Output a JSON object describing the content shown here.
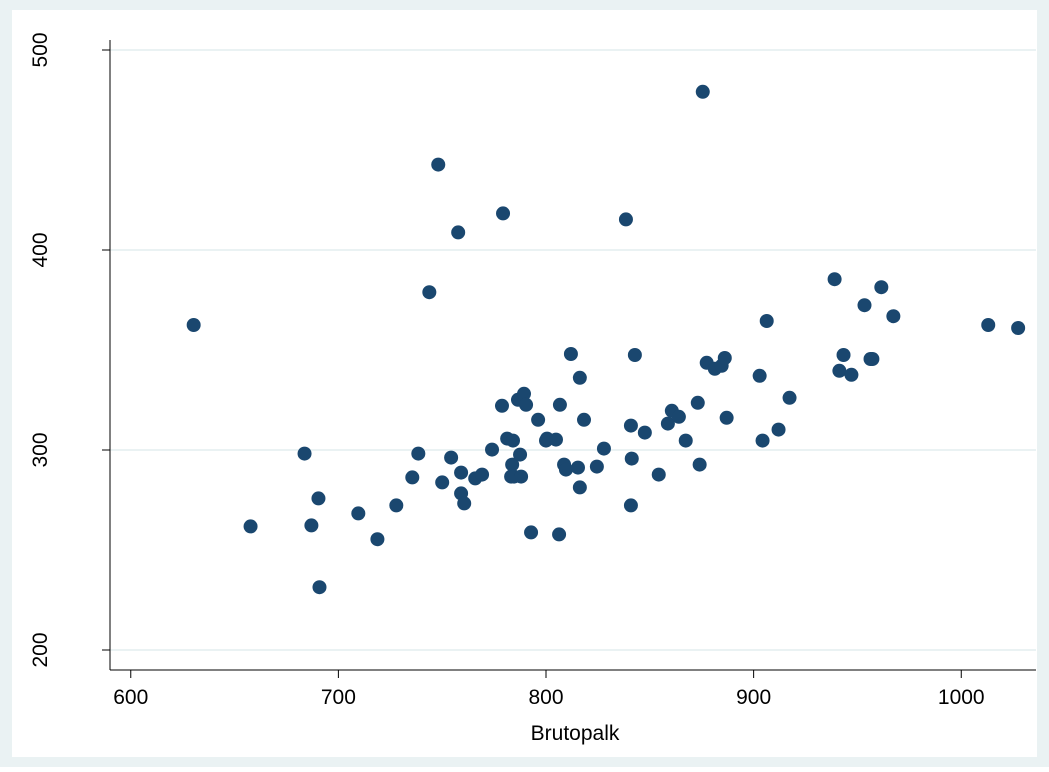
{
  "chart_data": {
    "type": "scatter",
    "x_label": "Brutopalk",
    "xlim": [
      590,
      1036
    ],
    "ylim": [
      190,
      520
    ],
    "xticks": [
      600,
      700,
      800,
      900,
      1000
    ],
    "yticks": [
      200,
      300,
      400,
      500
    ],
    "grid": true,
    "x": [
      630.3,
      657.7,
      683.7,
      687.0,
      690.4,
      690.9,
      709.6,
      718.8,
      727.9,
      735.6,
      738.5,
      743.8,
      748.1,
      750.0,
      754.3,
      757.7,
      759.1,
      759.1,
      760.6,
      765.9,
      769.2,
      774.0,
      778.8,
      779.3,
      781.3,
      783.2,
      783.7,
      784.1,
      784.6,
      786.5,
      787.5,
      788.0,
      789.4,
      790.4,
      792.8,
      796.2,
      800.0,
      800.5,
      804.8,
      806.3,
      806.7,
      808.7,
      809.6,
      812.0,
      815.4,
      816.3,
      816.3,
      818.3,
      824.5,
      827.9,
      838.5,
      840.9,
      840.9,
      841.3,
      842.8,
      847.6,
      854.3,
      858.7,
      860.6,
      864.0,
      867.3,
      873.1,
      874.0,
      875.5,
      877.4,
      881.3,
      884.6,
      886.1,
      887.0,
      902.9,
      904.3,
      906.3,
      912.0,
      917.3,
      939.0,
      941.3,
      943.3,
      947.1,
      953.4,
      956.3,
      957.2,
      961.5,
      967.3,
      1013.0,
      1027.4
    ],
    "series": [
      {
        "color": "#1a476f",
        "values": [
          362.5,
          261.8,
          298.2,
          262.3,
          275.8,
          231.4,
          268.3,
          255.4,
          272.3,
          286.3,
          298.2,
          378.9,
          442.7,
          283.8,
          296.2,
          408.8,
          288.7,
          278.3,
          273.3,
          285.8,
          287.7,
          300.2,
          322.1,
          418.3,
          305.7,
          286.7,
          292.7,
          304.7,
          286.7,
          325.1,
          297.7,
          286.7,
          328.1,
          322.6,
          258.8,
          315.1,
          304.7,
          305.7,
          305.2,
          257.8,
          322.6,
          292.7,
          290.2,
          348.0,
          291.2,
          281.3,
          336.1,
          315.1,
          291.7,
          300.7,
          415.3,
          312.2,
          272.3,
          295.7,
          347.5,
          308.7,
          287.7,
          313.2,
          319.6,
          316.6,
          304.7,
          323.6,
          292.7,
          479.1,
          343.6,
          340.6,
          342.1,
          346.0,
          316.1,
          337.1,
          304.7,
          364.5,
          310.2,
          326.1,
          385.4,
          339.6,
          347.5,
          337.6,
          372.4,
          345.5,
          345.5,
          381.4,
          366.9,
          362.5,
          361.0
        ]
      }
    ]
  }
}
